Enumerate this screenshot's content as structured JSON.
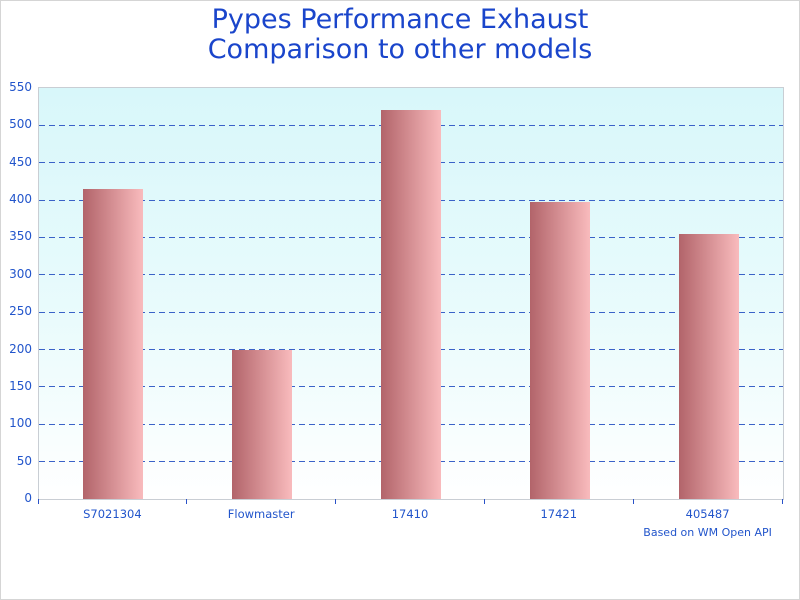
{
  "title": {
    "line1": "Pypes Performance Exhaust",
    "line2": "Comparison to other models"
  },
  "footnote": "Based on WM Open API",
  "colors": {
    "page_bg": "#ffffff",
    "page_border": "#d5d5d5",
    "title": "#1a45cb",
    "label": "#2255cb",
    "grid": "#3a62c8",
    "tick": "#2a52c8",
    "plot_border": "#c9ced4",
    "plot_bg_top": "#d8f7fa",
    "plot_bg_bottom": "#ffffff",
    "bar_gradient_left": "#b2646a",
    "bar_gradient_right": "#f9bbbd"
  },
  "chart_data": {
    "type": "bar",
    "title": "Pypes Performance Exhaust Comparison to other models",
    "categories": [
      "S7021304",
      "Flowmaster",
      "17410",
      "17421",
      "405487"
    ],
    "values": [
      415,
      200,
      521,
      398,
      355
    ],
    "xlabel": "",
    "ylabel": "",
    "ylim": [
      0,
      550
    ],
    "ytick_step": 50,
    "yticks": [
      0,
      50,
      100,
      150,
      200,
      250,
      300,
      350,
      400,
      450,
      500,
      550
    ],
    "grid": "horizontal-dashed",
    "legend": "none",
    "annotation": "Based on WM Open API"
  }
}
